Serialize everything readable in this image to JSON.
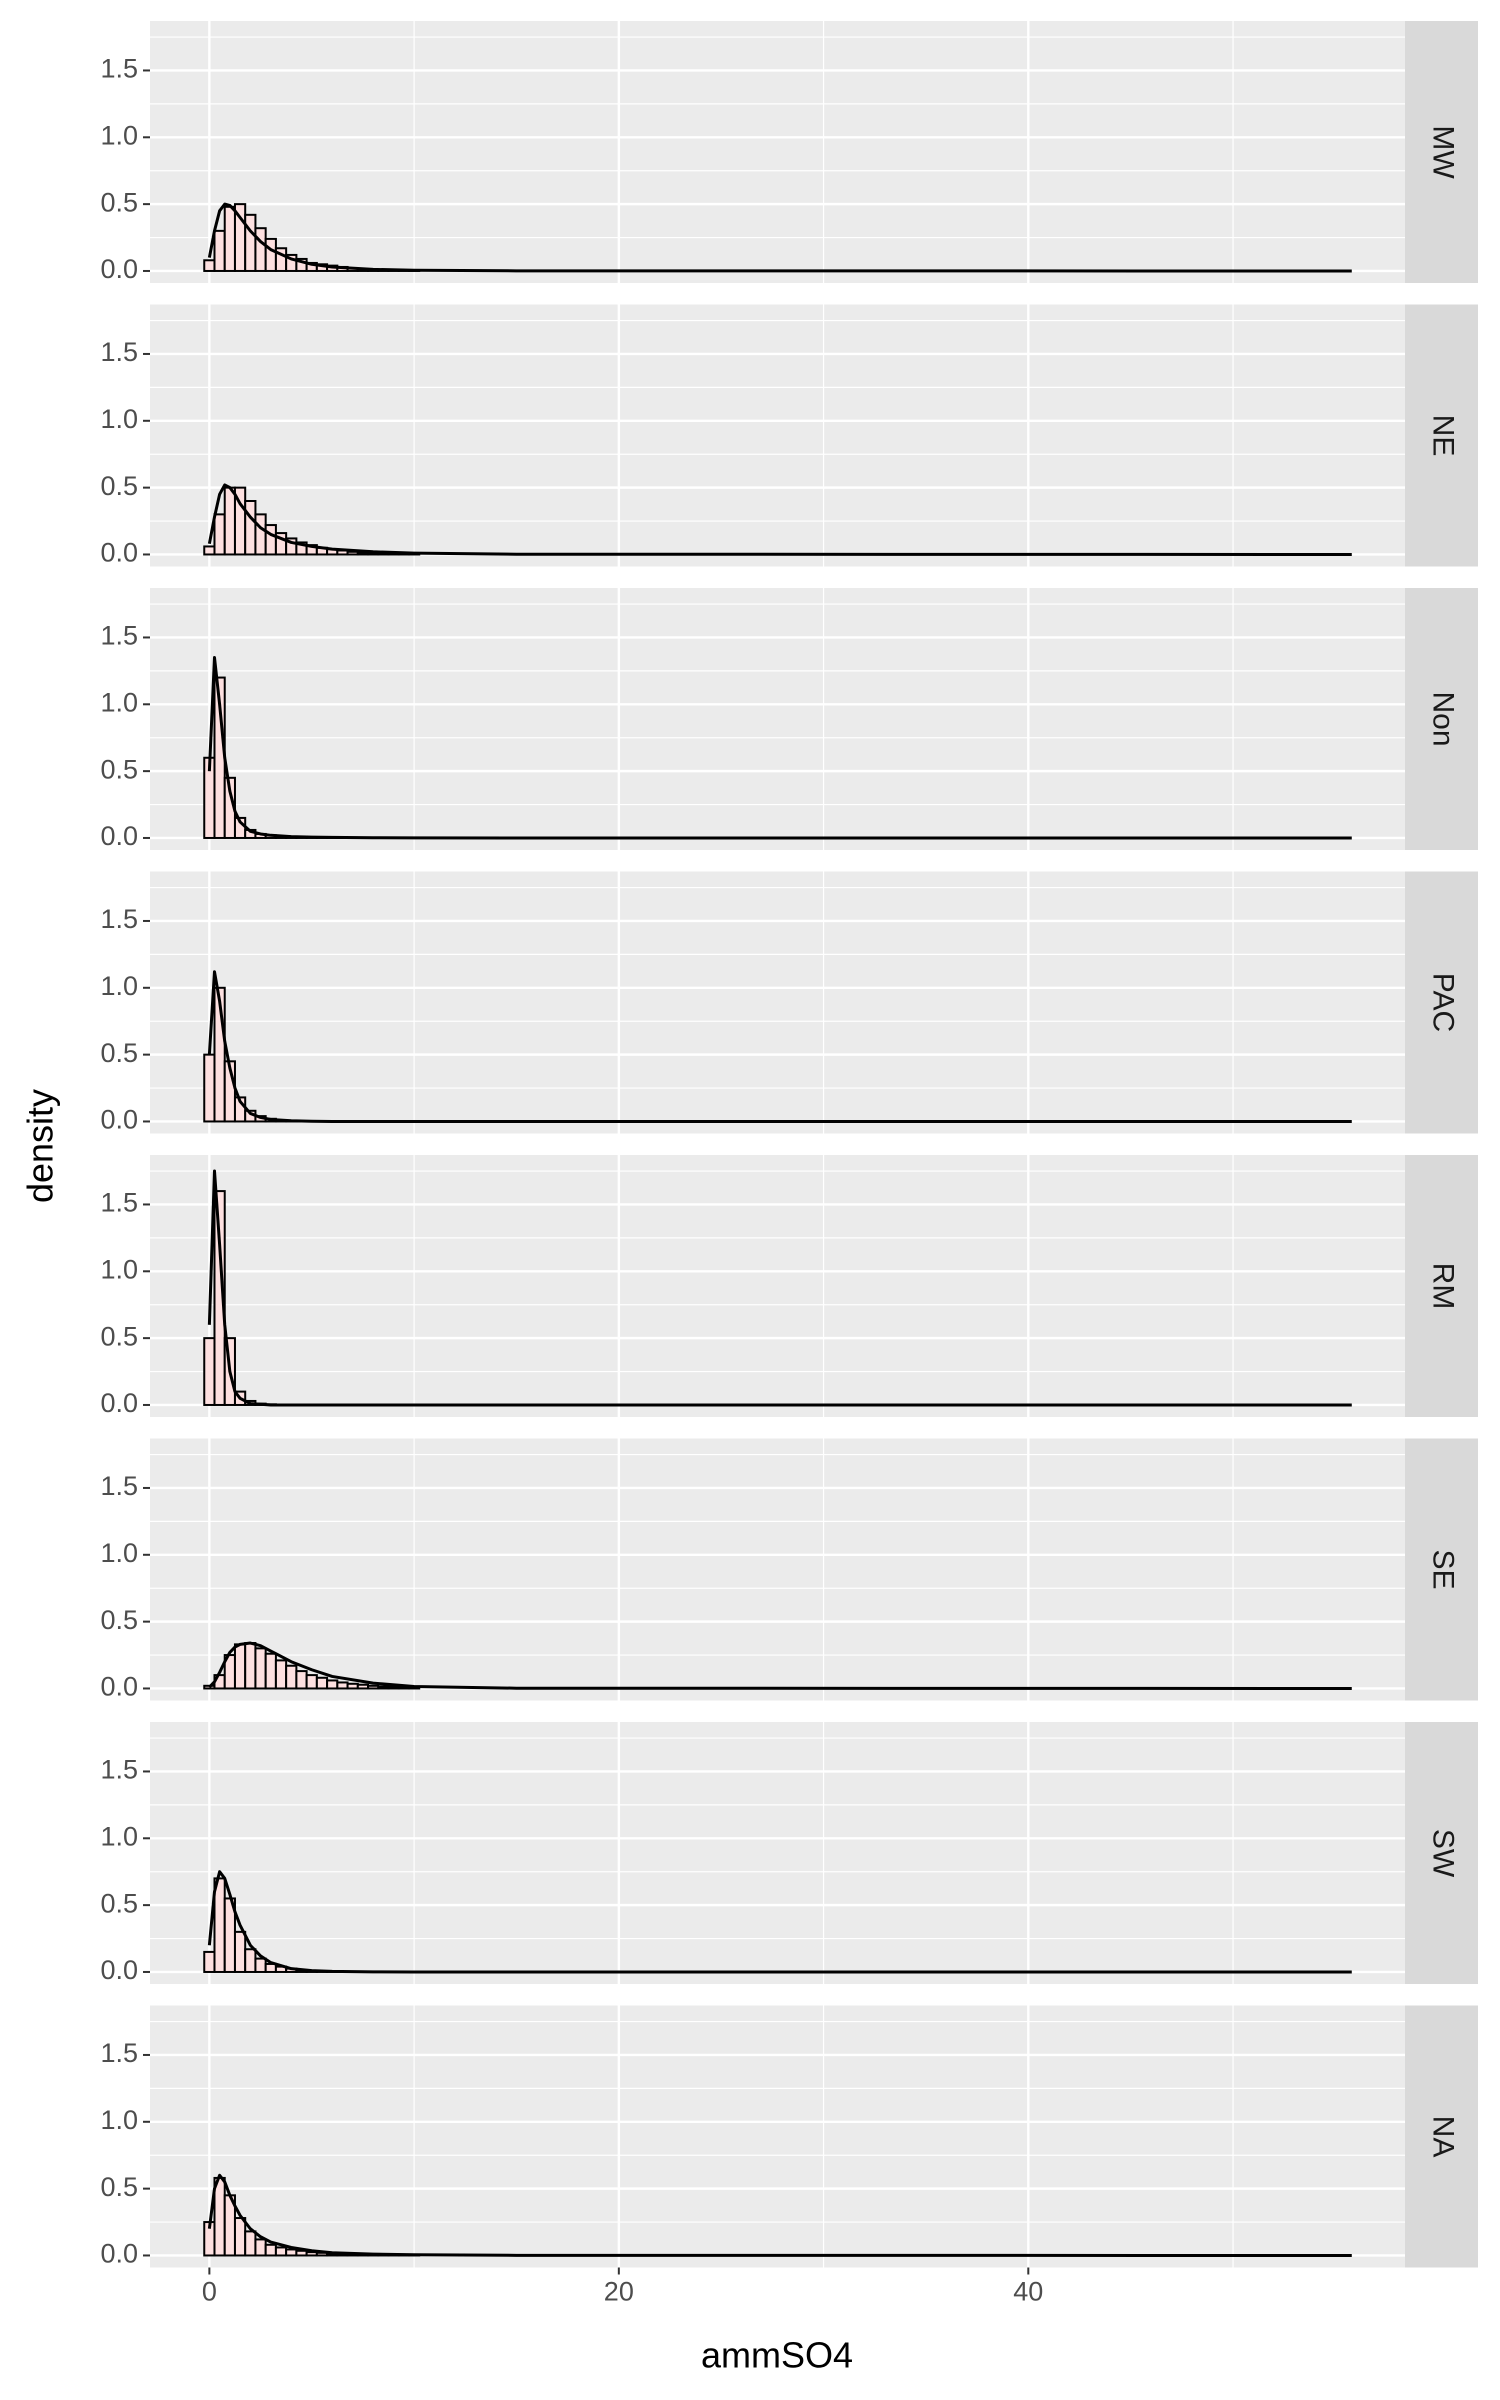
{
  "chart_data": {
    "type": "histogram",
    "xlabel": "ammSO4",
    "ylabel": "density",
    "xlim": [
      -2.9,
      58.4
    ],
    "xticks": [
      0,
      20,
      40
    ],
    "ylim": [
      -0.09,
      1.87
    ],
    "yticks": [
      {
        "value": 0,
        "label": "0.0"
      },
      {
        "value": 0.5,
        "label": "0.5"
      },
      {
        "value": 1,
        "label": "1.0"
      },
      {
        "value": 1.5,
        "label": "1.5"
      }
    ],
    "grid": true,
    "bar_color": "#fde0e0",
    "line_color": "#000000",
    "bins": [
      -0.25,
      0.25,
      0.75,
      1.25,
      1.75,
      2.25,
      2.75,
      3.25,
      3.75,
      4.25,
      4.75,
      5.25,
      5.75,
      6.25,
      6.75,
      7.25,
      7.75,
      8.25,
      8.75,
      9.25,
      9.75,
      10.25
    ],
    "density_x": [
      0,
      0.25,
      0.5,
      0.75,
      1,
      1.25,
      1.5,
      2,
      2.5,
      3,
      4,
      5,
      6,
      8,
      10,
      15,
      55.8
    ],
    "facets": [
      {
        "name": "MW",
        "counts": [
          0.08,
          0.3,
          0.48,
          0.5,
          0.42,
          0.32,
          0.24,
          0.17,
          0.12,
          0.09,
          0.06,
          0.05,
          0.04,
          0.03,
          0.02,
          0.015,
          0.01,
          0.008,
          0.006,
          0.004,
          0.003
        ],
        "density": [
          0.1,
          0.3,
          0.45,
          0.5,
          0.49,
          0.45,
          0.4,
          0.3,
          0.22,
          0.16,
          0.09,
          0.05,
          0.03,
          0.012,
          0.005,
          0.001,
          0
        ]
      },
      {
        "name": "NE",
        "counts": [
          0.06,
          0.3,
          0.5,
          0.5,
          0.4,
          0.3,
          0.22,
          0.16,
          0.12,
          0.09,
          0.07,
          0.05,
          0.04,
          0.03,
          0.02,
          0.015,
          0.01,
          0.008,
          0.006,
          0.004,
          0.003
        ],
        "density": [
          0.08,
          0.28,
          0.45,
          0.52,
          0.5,
          0.45,
          0.38,
          0.28,
          0.2,
          0.15,
          0.09,
          0.06,
          0.04,
          0.02,
          0.01,
          0.002,
          0
        ]
      },
      {
        "name": "Non",
        "counts": [
          0.6,
          1.2,
          0.45,
          0.15,
          0.06,
          0.03,
          0.02,
          0.01,
          0.008,
          0.006,
          0.005,
          0.004,
          0.003,
          0.003,
          0.002,
          0.002,
          0.001,
          0.001,
          0.001,
          0,
          0
        ],
        "density": [
          0.5,
          1.35,
          1.0,
          0.6,
          0.35,
          0.2,
          0.12,
          0.05,
          0.03,
          0.02,
          0.01,
          0.006,
          0.004,
          0.002,
          0.001,
          0,
          0
        ]
      },
      {
        "name": "PAC",
        "counts": [
          0.5,
          1.0,
          0.45,
          0.18,
          0.08,
          0.04,
          0.02,
          0.01,
          0.005,
          0.003,
          0.002,
          0,
          0,
          0,
          0,
          0,
          0,
          0,
          0,
          0,
          0
        ],
        "density": [
          0.5,
          1.12,
          0.9,
          0.6,
          0.4,
          0.25,
          0.15,
          0.06,
          0.03,
          0.015,
          0.005,
          0.002,
          0,
          0,
          0,
          0,
          0
        ]
      },
      {
        "name": "RM",
        "counts": [
          0.5,
          1.6,
          0.5,
          0.1,
          0.03,
          0.01,
          0.005,
          0,
          0,
          0,
          0,
          0,
          0,
          0,
          0,
          0,
          0,
          0,
          0,
          0,
          0
        ],
        "density": [
          0.6,
          1.75,
          1.2,
          0.6,
          0.25,
          0.1,
          0.05,
          0.01,
          0.005,
          0,
          0,
          0,
          0,
          0,
          0,
          0,
          0
        ]
      },
      {
        "name": "SE",
        "counts": [
          0.02,
          0.1,
          0.25,
          0.33,
          0.34,
          0.3,
          0.26,
          0.21,
          0.17,
          0.13,
          0.1,
          0.08,
          0.06,
          0.045,
          0.035,
          0.028,
          0.02,
          0.015,
          0.012,
          0.009,
          0.007
        ],
        "density": [
          0.01,
          0.05,
          0.12,
          0.2,
          0.27,
          0.31,
          0.33,
          0.34,
          0.32,
          0.28,
          0.2,
          0.14,
          0.09,
          0.04,
          0.015,
          0.002,
          0
        ]
      },
      {
        "name": "SW",
        "counts": [
          0.15,
          0.7,
          0.55,
          0.3,
          0.17,
          0.1,
          0.06,
          0.04,
          0.025,
          0.015,
          0.01,
          0.006,
          0.004,
          0.003,
          0.002,
          0.001,
          0.001,
          0,
          0,
          0,
          0
        ],
        "density": [
          0.2,
          0.6,
          0.75,
          0.7,
          0.58,
          0.45,
          0.35,
          0.2,
          0.12,
          0.07,
          0.025,
          0.01,
          0.004,
          0.001,
          0,
          0,
          0
        ]
      },
      {
        "name": "NA",
        "counts": [
          0.25,
          0.58,
          0.45,
          0.28,
          0.18,
          0.12,
          0.08,
          0.06,
          0.045,
          0.035,
          0.025,
          0.02,
          0.015,
          0.012,
          0.01,
          0.008,
          0.006,
          0.005,
          0.004,
          0.003,
          0.002
        ],
        "density": [
          0.2,
          0.5,
          0.6,
          0.55,
          0.45,
          0.37,
          0.3,
          0.2,
          0.14,
          0.1,
          0.06,
          0.035,
          0.02,
          0.01,
          0.005,
          0.001,
          0
        ]
      }
    ]
  }
}
